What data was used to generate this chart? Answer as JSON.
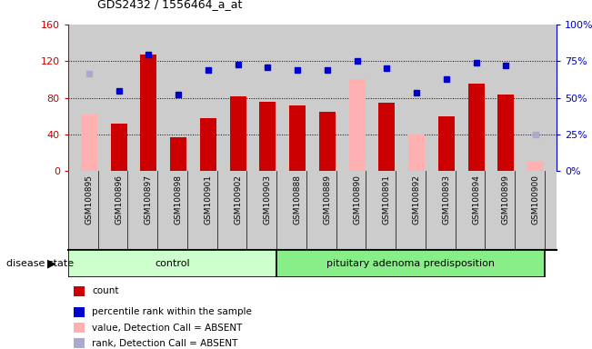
{
  "title": "GDS2432 / 1556464_a_at",
  "samples": [
    "GSM100895",
    "GSM100896",
    "GSM100897",
    "GSM100898",
    "GSM100901",
    "GSM100902",
    "GSM100903",
    "GSM100888",
    "GSM100889",
    "GSM100890",
    "GSM100891",
    "GSM100892",
    "GSM100893",
    "GSM100894",
    "GSM100899",
    "GSM100900"
  ],
  "count_values": [
    null,
    52,
    127,
    37,
    58,
    82,
    76,
    72,
    65,
    null,
    75,
    null,
    60,
    95,
    83,
    null
  ],
  "count_absent": [
    62,
    null,
    null,
    null,
    null,
    null,
    null,
    null,
    null,
    100,
    null,
    40,
    null,
    null,
    null,
    10
  ],
  "percentile_values": [
    null,
    87,
    127,
    83,
    110,
    116,
    113,
    110,
    110,
    120,
    112,
    85,
    100,
    118,
    115,
    null
  ],
  "percentile_absent": [
    106,
    null,
    null,
    null,
    null,
    null,
    null,
    null,
    null,
    null,
    null,
    null,
    null,
    null,
    null,
    40
  ],
  "control_count": 7,
  "disease_count": 9,
  "control_label": "control",
  "disease_label": "pituitary adenoma predisposition",
  "disease_state_label": "disease state",
  "ylim_left": [
    0,
    160
  ],
  "ylim_right": [
    0,
    100
  ],
  "yticks_left": [
    0,
    40,
    80,
    120,
    160
  ],
  "yticks_right": [
    0,
    25,
    50,
    75,
    100
  ],
  "bar_color_red": "#cc0000",
  "bar_color_pink": "#ffb0b0",
  "dot_color_blue": "#0000cc",
  "dot_color_lightblue": "#aaaacc",
  "control_bg": "#ccffcc",
  "disease_bg": "#88ee88",
  "sample_bg": "#cccccc",
  "legend_items": [
    "count",
    "percentile rank within the sample",
    "value, Detection Call = ABSENT",
    "rank, Detection Call = ABSENT"
  ]
}
